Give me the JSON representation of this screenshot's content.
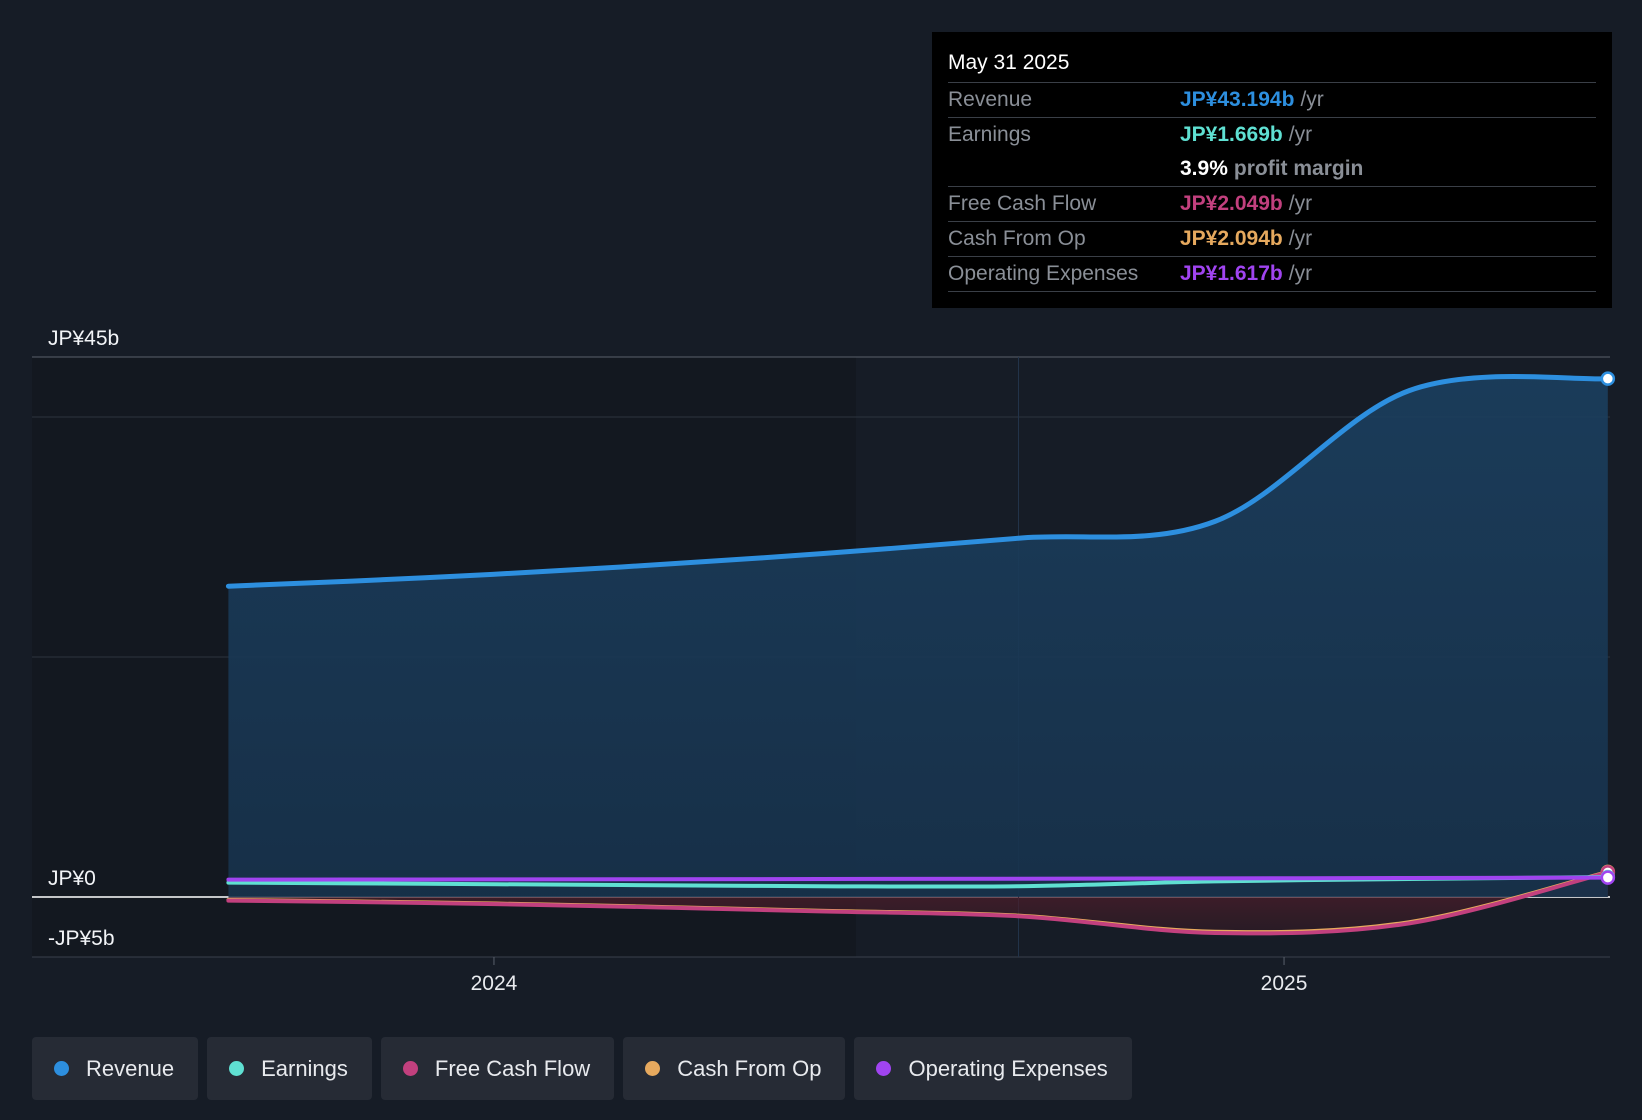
{
  "chart_data": {
    "type": "area",
    "y_axis": {
      "labels": [
        "JP¥45b",
        "JP¥0",
        "-JP¥5b"
      ],
      "ylim": [
        -5,
        45
      ],
      "unit": "JP¥b"
    },
    "x_axis": {
      "ticks": [
        "2024",
        "2025"
      ],
      "xlim": [
        "2023-06-01",
        "2025-06-01"
      ]
    },
    "past_data_start": "2024-08-31",
    "series": [
      {
        "name": "Revenue",
        "color": "#2d8fdf",
        "x": [
          "2023-08-31",
          "2023-11-30",
          "2024-02-29",
          "2024-05-31",
          "2024-08-31",
          "2024-11-30",
          "2025-02-28",
          "2025-05-31"
        ],
        "y": [
          25.9,
          26.6,
          27.5,
          28.6,
          29.9,
          31.3,
          42.2,
          43.194
        ]
      },
      {
        "name": "Earnings",
        "color": "#5fe0d2",
        "x": [
          "2023-08-31",
          "2023-11-30",
          "2024-02-29",
          "2024-05-31",
          "2024-08-31",
          "2024-11-30",
          "2025-02-28",
          "2025-05-31"
        ],
        "y": [
          1.2,
          1.1,
          1.0,
          0.9,
          0.9,
          1.3,
          1.5,
          1.669
        ]
      },
      {
        "name": "Free Cash Flow",
        "color": "#c2407e",
        "x": [
          "2023-08-31",
          "2023-11-30",
          "2024-02-29",
          "2024-05-31",
          "2024-08-31",
          "2024-11-30",
          "2025-02-28",
          "2025-05-31"
        ],
        "y": [
          -0.3,
          -0.5,
          -0.8,
          -1.2,
          -1.6,
          -3.0,
          -2.2,
          2.049
        ]
      },
      {
        "name": "Cash From Op",
        "color": "#e6a95e",
        "x": [
          "2023-08-31",
          "2023-11-30",
          "2024-02-29",
          "2024-05-31",
          "2024-08-31",
          "2024-11-30",
          "2025-02-28",
          "2025-05-31"
        ],
        "y": [
          -0.25,
          -0.45,
          -0.75,
          -1.15,
          -1.55,
          -2.9,
          -2.1,
          2.094
        ]
      },
      {
        "name": "Operating Expenses",
        "color": "#a044f0",
        "x": [
          "2023-08-31",
          "2023-11-30",
          "2024-02-29",
          "2024-05-31",
          "2024-08-31",
          "2024-11-30",
          "2025-02-28",
          "2025-05-31"
        ],
        "y": [
          1.45,
          1.46,
          1.48,
          1.5,
          1.52,
          1.55,
          1.58,
          1.617
        ]
      }
    ],
    "gridlines": [
      0,
      20,
      40,
      45
    ],
    "grid": true
  },
  "tooltip": {
    "date": "May 31 2025",
    "rows": [
      {
        "label": "Revenue",
        "value": "JP¥43.194b",
        "unit": "/yr",
        "color": "#2d8fdf"
      },
      {
        "label": "Earnings",
        "value": "JP¥1.669b",
        "unit": "/yr",
        "color": "#5fe0d2"
      },
      {
        "margin_value": "3.9%",
        "margin_label": "profit margin"
      },
      {
        "label": "Free Cash Flow",
        "value": "JP¥2.049b",
        "unit": "/yr",
        "color": "#c2407e"
      },
      {
        "label": "Cash From Op",
        "value": "JP¥2.094b",
        "unit": "/yr",
        "color": "#e6a95e"
      },
      {
        "label": "Operating Expenses",
        "value": "JP¥1.617b",
        "unit": "/yr",
        "color": "#a044f0"
      }
    ]
  },
  "legend": [
    {
      "label": "Revenue",
      "color": "#2d8fdf"
    },
    {
      "label": "Earnings",
      "color": "#5fe0d2"
    },
    {
      "label": "Free Cash Flow",
      "color": "#c2407e"
    },
    {
      "label": "Cash From Op",
      "color": "#e6a95e"
    },
    {
      "label": "Operating Expenses",
      "color": "#a044f0"
    }
  ]
}
